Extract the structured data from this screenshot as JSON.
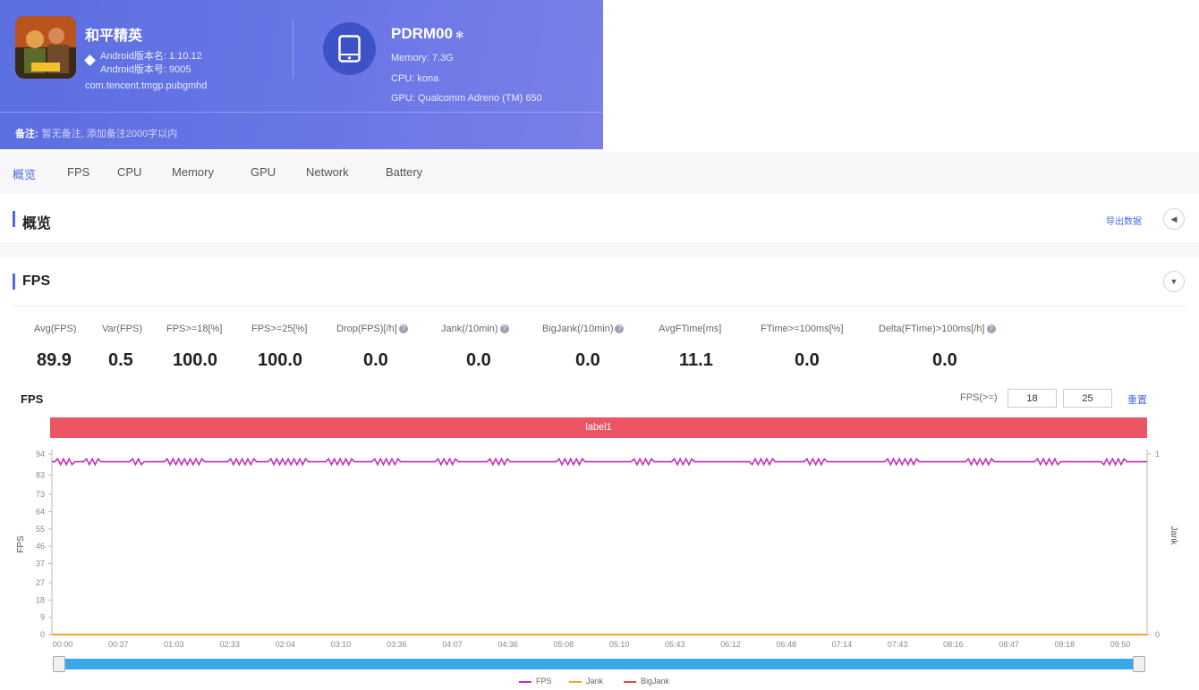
{
  "app": {
    "name": "和平精英",
    "version_line": "Android版本名: 1.10.12",
    "version_code_line": "Android版本号: 9005",
    "package": "com.tencent.tmgp.pubgmhd"
  },
  "device": {
    "name": "PDRM00",
    "memory": "Memory: 7.3G",
    "cpu": "CPU: kona",
    "gpu": "GPU: Qualcomm Adreno (TM) 650"
  },
  "note": {
    "label": "备注:",
    "text": "暂无备注, 添加备注2000字以内"
  },
  "tabs": [
    "概览",
    "FPS",
    "CPU",
    "Memory",
    "GPU",
    "Network",
    "Battery"
  ],
  "overview": {
    "title": "概览",
    "export_label": "导出数据",
    "collapse_icon": "triangle-left-icon"
  },
  "fps_section": {
    "title": "FPS",
    "toggle_icon": "triangle-down-icon"
  },
  "stats": [
    {
      "label": "Avg(FPS)",
      "value": "89.9",
      "info": false
    },
    {
      "label": "Var(FPS)",
      "value": "0.5",
      "info": false
    },
    {
      "label": "FPS>=18[%]",
      "value": "100.0",
      "info": false
    },
    {
      "label": "FPS>=25[%]",
      "value": "100.0",
      "info": false
    },
    {
      "label": "Drop(FPS)[/h]",
      "value": "0.0",
      "info": true
    },
    {
      "label": "Jank(/10min)",
      "value": "0.0",
      "info": true
    },
    {
      "label": "BigJank(/10min)",
      "value": "0.0",
      "info": true
    },
    {
      "label": "AvgFTime[ms]",
      "value": "11.1",
      "info": false
    },
    {
      "label": "FTime>=100ms[%]",
      "value": "0.0",
      "info": false
    },
    {
      "label": "Delta(FTime)>100ms[/h]",
      "value": "0.0",
      "info": true
    }
  ],
  "chart_controls": {
    "title": "FPS",
    "threshold_label": "FPS(>=)",
    "threshold_1": "18",
    "threshold_2": "25",
    "reset_label": "重置",
    "label_bar_text": "label1"
  },
  "colors": {
    "fps": "#c42fb8",
    "jank": "#f5a623",
    "bigjank": "#e0454f",
    "accent": "#4a6ce0",
    "label_bar": "#ec5564"
  },
  "chart_data": {
    "type": "line",
    "ylabel_left": "FPS",
    "ylabel_right": "Jank",
    "ylim_left": [
      0,
      94
    ],
    "yticks_left": [
      0,
      9,
      18,
      27,
      37,
      46,
      55,
      64,
      73,
      83,
      94
    ],
    "ylim_right": [
      0,
      1
    ],
    "yticks_right": [
      0,
      1
    ],
    "xticks": [
      "00:00",
      "00:37",
      "01:03",
      "02:33",
      "02:04",
      "03:10",
      "03:36",
      "04:07",
      "04:36",
      "05:08",
      "05:10",
      "05:43",
      "06:12",
      "06:48",
      "07:14",
      "07:43",
      "08:16",
      "08:47",
      "09:18",
      "09:50"
    ],
    "legend": [
      "FPS",
      "Jank",
      "BigJank"
    ],
    "series": [
      {
        "name": "FPS",
        "baseline": 90,
        "noise_bands": [
          [
            2,
            7
          ],
          [
            12,
            16
          ],
          [
            28,
            31
          ],
          [
            40,
            52
          ],
          [
            62,
            70
          ],
          [
            76,
            88
          ],
          [
            96,
            104
          ],
          [
            112,
            120
          ],
          [
            134,
            140
          ],
          [
            152,
            158
          ],
          [
            176,
            184
          ],
          [
            202,
            208
          ],
          [
            216,
            222
          ],
          [
            243,
            250
          ],
          [
            262,
            268
          ],
          [
            290,
            300
          ],
          [
            318,
            326
          ],
          [
            342,
            349
          ],
          [
            365,
            372
          ]
        ],
        "band_amplitude": 1.5
      },
      {
        "name": "Jank",
        "values_constant": 0
      },
      {
        "name": "BigJank",
        "values_constant": 0
      }
    ]
  }
}
